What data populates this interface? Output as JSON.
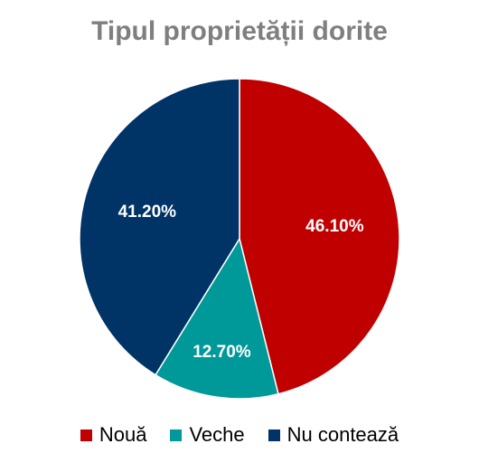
{
  "chart_data": {
    "type": "pie",
    "title": "Tipul proprietății dorite",
    "legend_position": "bottom",
    "slices": [
      {
        "name": "Nouă",
        "value": 46.1,
        "label": "46.10%",
        "color": "#c00000"
      },
      {
        "name": "Veche",
        "value": 12.7,
        "label": "12.70%",
        "color": "#009999"
      },
      {
        "name": "Nu contează",
        "value": 41.2,
        "label": "41.20%",
        "color": "#003366"
      }
    ]
  }
}
